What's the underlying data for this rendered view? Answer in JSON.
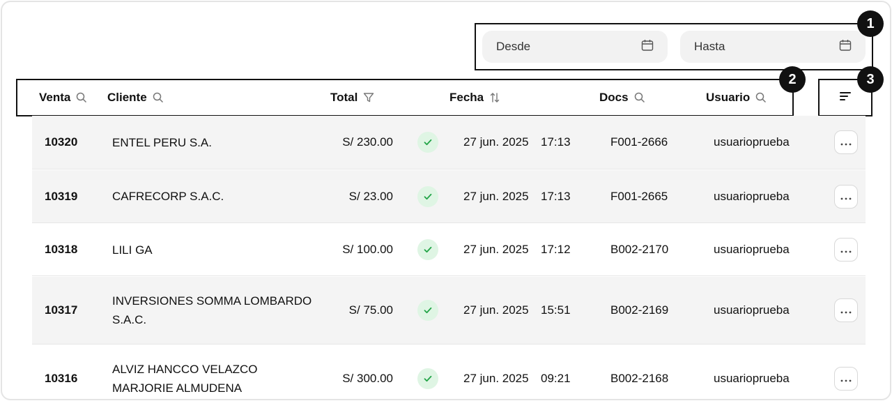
{
  "filters": {
    "desde_label": "Desde",
    "hasta_label": "Hasta",
    "icon": "calendar-icon"
  },
  "callouts": [
    "1",
    "2",
    "3"
  ],
  "header": {
    "venta": "Venta",
    "cliente": "Cliente",
    "total": "Total",
    "fecha": "Fecha",
    "docs": "Docs",
    "usuario": "Usuario"
  },
  "colors": {
    "row_shade": "#f4f4f4",
    "check_bg": "#dff5e4",
    "check_icon": "#22a447",
    "annotation_border": "#111111"
  },
  "rows": [
    {
      "venta": "10320",
      "cliente": "ENTEL PERU S.A.",
      "total": "S/ 230.00",
      "fecha": "27 jun. 2025",
      "hora": "17:13",
      "doc": "F001-2666",
      "usuario": "usuarioprueba"
    },
    {
      "venta": "10319",
      "cliente": "CAFRECORP S.A.C.",
      "total": "S/ 23.00",
      "fecha": "27 jun. 2025",
      "hora": "17:13",
      "doc": "F001-2665",
      "usuario": "usuarioprueba"
    },
    {
      "venta": "10318",
      "cliente": "LILI GA",
      "total": "S/ 100.00",
      "fecha": "27 jun. 2025",
      "hora": "17:12",
      "doc": "B002-2170",
      "usuario": "usuarioprueba"
    },
    {
      "venta": "10317",
      "cliente": "INVERSIONES SOMMA LOMBARDO S.A.C.",
      "total": "S/ 75.00",
      "fecha": "27 jun. 2025",
      "hora": "15:51",
      "doc": "B002-2169",
      "usuario": "usuarioprueba"
    },
    {
      "venta": "10316",
      "cliente": "ALVIZ HANCCO VELAZCO MARJORIE ALMUDENA",
      "total": "S/ 300.00",
      "fecha": "27 jun. 2025",
      "hora": "09:21",
      "doc": "B002-2168",
      "usuario": "usuarioprueba"
    }
  ]
}
